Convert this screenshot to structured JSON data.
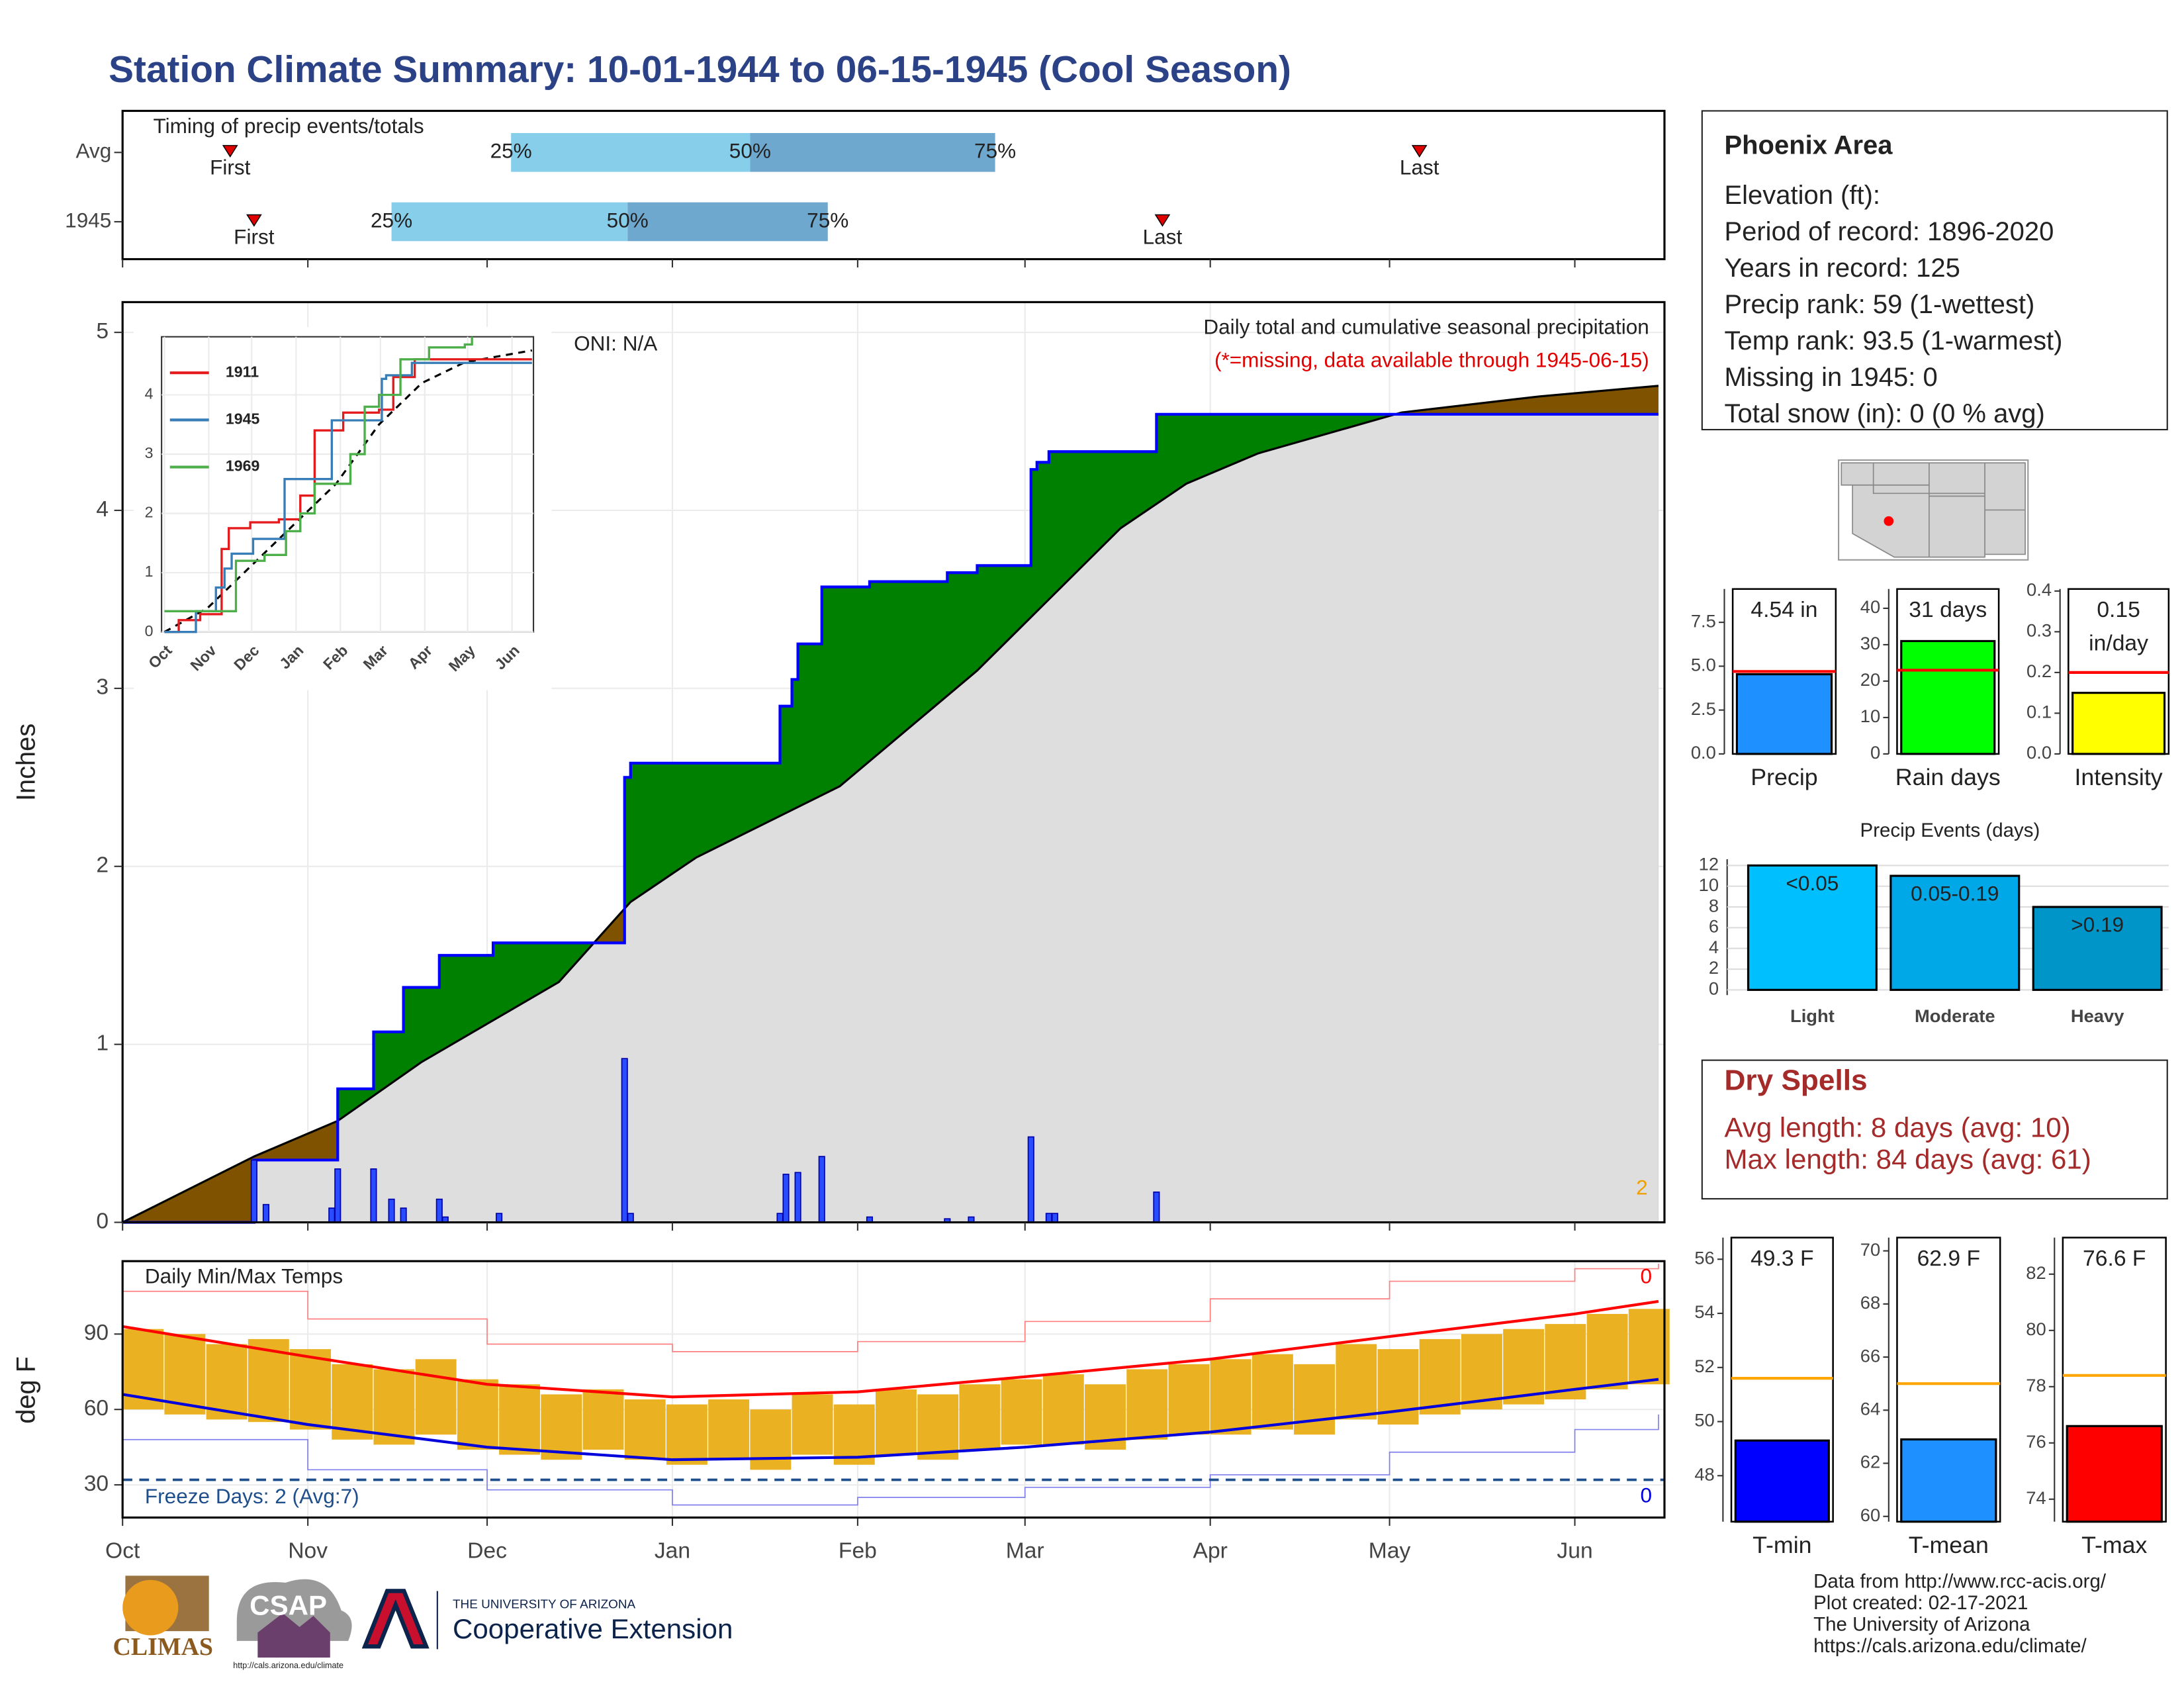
{
  "title": "Station Climate Summary: 10-01-1944 to 06-15-1945 (Cool Season)",
  "station": {
    "name": "Phoenix Area",
    "lines": [
      "Elevation (ft):",
      "Period of record: 1896-2020",
      "Years in record: 125",
      "Precip rank: 59 (1-wettest)",
      "Temp rank: 93.5 (1-warmest)",
      "Missing in 1945: 0",
      "Total snow (in): 0 (0 % avg)"
    ]
  },
  "dry_spells": {
    "title": "Dry Spells",
    "lines": [
      "Avg length: 8 days (avg: 10)",
      "Max length: 84 days (avg: 61)"
    ]
  },
  "footer": {
    "credits": [
      "Data from http://www.rcc-acis.org/",
      "Plot created: 02-17-2021",
      "The University of Arizona",
      "https://cals.arizona.edu/climate/"
    ],
    "logos": [
      "CLIMAS",
      "CSAP",
      "http://cals.arizona.edu/climate",
      "THE UNIVERSITY OF ARIZONA",
      "Cooperative Extension"
    ]
  },
  "chart_data": [
    {
      "type": "timing",
      "title": "Timing of precip events/totals",
      "categories": [
        "Avg",
        "1945"
      ],
      "xlim": [
        0,
        258
      ],
      "xticks": [
        0,
        31,
        61,
        92,
        123,
        151,
        182,
        212,
        243
      ],
      "series": [
        {
          "name": "First",
          "values": [
            18,
            22
          ]
        },
        {
          "name": "25%",
          "values": [
            65,
            45
          ]
        },
        {
          "name": "50%",
          "values": [
            105,
            84.5
          ]
        },
        {
          "name": "75%",
          "values": [
            146,
            118
          ]
        },
        {
          "name": "Last",
          "values": [
            217,
            174
          ]
        }
      ],
      "colors": [
        "#87ceeb",
        "#6fa8cf"
      ],
      "marker_color": "#e00000"
    },
    {
      "type": "cumulative",
      "title": "Daily total and cumulative seasonal precipitation",
      "subtitle": "(*=missing, data available through 1945-06-15)",
      "annotation": "ONI: N/A",
      "corner_note": 2,
      "y_label": "Inches",
      "xlim": [
        0,
        258
      ],
      "ylim": [
        0,
        5.17
      ],
      "yticks": [
        0,
        1,
        2,
        3,
        4,
        5
      ],
      "xticks": [
        0,
        31,
        61,
        92,
        123,
        151,
        182,
        212,
        243
      ],
      "grid": true,
      "cumulative": {
        "x": [
          0,
          22,
          36,
          42,
          47,
          53,
          62,
          84,
          85,
          110,
          112,
          113,
          117,
          125,
          138,
          143,
          152,
          153,
          155,
          173,
          257
        ],
        "values": [
          0,
          0.35,
          0.75,
          1.07,
          1.32,
          1.5,
          1.57,
          2.5,
          2.58,
          2.9,
          3.05,
          3.25,
          3.57,
          3.6,
          3.65,
          3.69,
          4.23,
          4.27,
          4.33,
          4.54,
          4.54
        ],
        "color": "#0000ff"
      },
      "normal": {
        "x": [
          0,
          22,
          36,
          50,
          73,
          85,
          96,
          120,
          143,
          155,
          167,
          178,
          190,
          214,
          237,
          257
        ],
        "values": [
          0,
          0.37,
          0.57,
          0.9,
          1.35,
          1.8,
          2.05,
          2.45,
          3.1,
          3.5,
          3.9,
          4.15,
          4.32,
          4.55,
          4.64,
          4.7
        ],
        "color": "#000000"
      },
      "daily": {
        "x": [
          22,
          24,
          35,
          36,
          42,
          45,
          47,
          53,
          54,
          63,
          84,
          85,
          110,
          111,
          113,
          117,
          125,
          138,
          142,
          152,
          155,
          156,
          173
        ],
        "values": [
          0.35,
          0.1,
          0.08,
          0.3,
          0.3,
          0.13,
          0.08,
          0.13,
          0.03,
          0.05,
          0.92,
          0.05,
          0.05,
          0.27,
          0.28,
          0.37,
          0.03,
          0.02,
          0.03,
          0.48,
          0.05,
          0.05,
          0.17
        ],
        "color": "#2a4cff"
      },
      "above_color": "#008000",
      "below_color": "#7f5200",
      "fill_color": "#dedede",
      "note_color": "#f0a000",
      "subtitle_color": "#e00000"
    },
    {
      "type": "temps",
      "title": "Daily Min/Max Temps",
      "y_label": "deg F",
      "xlim": [
        0,
        258
      ],
      "ylim": [
        17,
        119
      ],
      "yticks": [
        30,
        60,
        90
      ],
      "xticks": [
        {
          "value": 0,
          "label": "Oct"
        },
        {
          "value": 31,
          "label": "Nov"
        },
        {
          "value": 61,
          "label": "Dec"
        },
        {
          "value": 92,
          "label": "Jan"
        },
        {
          "value": 123,
          "label": "Feb"
        },
        {
          "value": 151,
          "label": "Mar"
        },
        {
          "value": 182,
          "label": "Apr"
        },
        {
          "value": 212,
          "label": "May"
        },
        {
          "value": 243,
          "label": "Jun"
        }
      ],
      "observed": {
        "x": [
          0,
          7,
          14,
          21,
          28,
          35,
          42,
          49,
          56,
          63,
          70,
          77,
          84,
          91,
          98,
          105,
          112,
          119,
          126,
          133,
          140,
          147,
          154,
          161,
          168,
          175,
          182,
          189,
          196,
          203,
          210,
          217,
          224,
          231,
          238,
          245,
          252
        ],
        "max": [
          92,
          90,
          86,
          88,
          84,
          78,
          76,
          80,
          72,
          70,
          66,
          68,
          64,
          62,
          64,
          60,
          66,
          62,
          68,
          66,
          70,
          72,
          74,
          70,
          76,
          78,
          80,
          82,
          78,
          86,
          84,
          88,
          90,
          92,
          94,
          98,
          100
        ],
        "min": [
          60,
          58,
          56,
          55,
          52,
          48,
          46,
          50,
          44,
          42,
          40,
          44,
          40,
          38,
          40,
          36,
          42,
          38,
          42,
          40,
          44,
          46,
          46,
          44,
          48,
          50,
          50,
          52,
          50,
          56,
          54,
          58,
          60,
          62,
          64,
          68,
          70
        ],
        "color": "#eab223"
      },
      "line_x": [
        0,
        31,
        61,
        92,
        123,
        151,
        182,
        212,
        243,
        257
      ],
      "normal_max": {
        "values": [
          93,
          81,
          70,
          65,
          67,
          73,
          80,
          89,
          98,
          103
        ],
        "color": "#ff0000"
      },
      "normal_min": {
        "values": [
          66,
          54,
          45,
          40,
          41,
          45,
          51,
          59,
          68,
          72
        ],
        "color": "#0000dd"
      },
      "record_max": {
        "values": [
          107,
          96,
          86,
          83,
          87,
          95,
          104,
          111,
          116,
          118
        ],
        "color": "#ff8080"
      },
      "record_min": {
        "values": [
          48,
          36,
          28,
          22,
          25,
          29,
          34,
          43,
          52,
          58
        ],
        "color": "#8080ee"
      },
      "freeze": 32,
      "freeze_label": "Freeze Days: 2 (Avg:7)",
      "freeze_color": "#1f4e8c",
      "record_highs": 0,
      "record_lows": 0
    },
    {
      "type": "inset",
      "xlim": [
        -2,
        258
      ],
      "ylim": [
        0,
        4.98
      ],
      "yticks": [
        0,
        1,
        2,
        3,
        4
      ],
      "xticks": [
        {
          "value": 0,
          "label": "Oct"
        },
        {
          "value": 31,
          "label": "Nov"
        },
        {
          "value": 61,
          "label": "Dec"
        },
        {
          "value": 92,
          "label": "Jan"
        },
        {
          "value": 123,
          "label": "Feb"
        },
        {
          "value": 151,
          "label": "Mar"
        },
        {
          "value": 182,
          "label": "Apr"
        },
        {
          "value": 212,
          "label": "May"
        },
        {
          "value": 243,
          "label": "Jun"
        }
      ],
      "series": [
        {
          "name": "1911",
          "color": "#e41a1c",
          "x": [
            0,
            10,
            25,
            40,
            45,
            60,
            80,
            95,
            105,
            125,
            150,
            160,
            175,
            257
          ],
          "values": [
            0,
            0.2,
            0.3,
            1.4,
            1.75,
            1.85,
            1.9,
            2.3,
            3.4,
            3.7,
            3.75,
            4.3,
            4.6,
            4.6
          ]
        },
        {
          "name": "1945",
          "color": "#377eb8",
          "x": [
            0,
            22,
            36,
            42,
            47,
            62,
            84,
            117,
            152,
            155,
            173,
            257
          ],
          "values": [
            0,
            0.35,
            0.75,
            1.07,
            1.32,
            1.57,
            2.58,
            3.57,
            4.27,
            4.33,
            4.54,
            4.54
          ]
        },
        {
          "name": "1969",
          "color": "#4daf4a",
          "x": [
            0,
            20,
            45,
            50,
            70,
            85,
            95,
            105,
            130,
            140,
            150,
            165,
            185,
            210,
            215
          ],
          "values": [
            0.35,
            0.35,
            0.35,
            1.2,
            1.3,
            1.7,
            2.0,
            2.5,
            3.0,
            3.8,
            4.0,
            4.6,
            4.8,
            4.85,
            4.98
          ]
        }
      ],
      "normal": {
        "x": [
          0,
          30,
          60,
          90,
          120,
          150,
          180,
          210,
          257
        ],
        "values": [
          0,
          0.4,
          1.1,
          1.8,
          2.5,
          3.5,
          4.2,
          4.55,
          4.75
        ],
        "color": "#000000"
      }
    },
    {
      "type": "summary_bar",
      "categories": [
        "Precip"
      ],
      "values": [
        4.54
      ],
      "value_labels": [
        "4.54 in"
      ],
      "normal": 4.7,
      "normal_color": "#ff0000",
      "color": "#1e90ff",
      "ylim": [
        0,
        9.4
      ],
      "yticks": [
        {
          "value": 0,
          "label": "0.0"
        },
        2.5,
        {
          "value": 5,
          "label": "5.0"
        },
        7.5
      ]
    },
    {
      "type": "summary_bar",
      "categories": [
        "Rain days"
      ],
      "values": [
        31
      ],
      "value_labels": [
        "31 days"
      ],
      "normal": 23,
      "normal_color": "#ff0000",
      "color": "#00ff00",
      "ylim": [
        0,
        45.3
      ],
      "yticks": [
        0,
        10,
        20,
        30,
        40
      ]
    },
    {
      "type": "summary_bar",
      "categories": [
        "Intensity"
      ],
      "values": [
        0.15
      ],
      "value_labels": [
        "0.15"
      ],
      "unit_label": "in/day",
      "normal": 0.2,
      "normal_color": "#ff0000",
      "color": "#ffff00",
      "ylim": [
        0,
        0.405
      ],
      "yticks": [
        {
          "value": 0,
          "label": "0.0"
        },
        0.1,
        0.2,
        0.3,
        0.4
      ]
    },
    {
      "type": "events",
      "title": "Precip Events (days)",
      "categories": [
        "Light",
        "Moderate",
        "Heavy"
      ],
      "values": [
        12,
        11,
        8
      ],
      "bin_labels": [
        "<0.05",
        "0.05-0.19",
        ">0.19"
      ],
      "colors": [
        "#00bfff",
        "#00a8e8",
        "#0095c8"
      ],
      "ylim": [
        -0.5,
        12.6
      ],
      "yticks": [
        0,
        2,
        4,
        6,
        8,
        10,
        12
      ],
      "grid": true
    },
    {
      "type": "summary_bar",
      "categories": [
        "T-min"
      ],
      "values": [
        49.3
      ],
      "value_labels": [
        "49.3 F"
      ],
      "normal": 51.6,
      "normal_color": "#ffa500",
      "color": "#0000ff",
      "ylim": [
        46.3,
        56.8
      ],
      "yticks": [
        48,
        50,
        52,
        54,
        56
      ]
    },
    {
      "type": "summary_bar",
      "categories": [
        "T-mean"
      ],
      "values": [
        62.9
      ],
      "value_labels": [
        "62.9 F"
      ],
      "normal": 65,
      "normal_color": "#ffa500",
      "color": "#1e90ff",
      "ylim": [
        59.8,
        70.5
      ],
      "yticks": [
        60,
        62,
        64,
        66,
        68,
        70
      ]
    },
    {
      "type": "summary_bar",
      "categories": [
        "T-max"
      ],
      "values": [
        76.6
      ],
      "value_labels": [
        "76.6 F"
      ],
      "normal": 78.4,
      "normal_color": "#ffa500",
      "color": "#ff0000",
      "ylim": [
        73.2,
        83.3
      ],
      "yticks": [
        74,
        76,
        78,
        80,
        82
      ]
    }
  ]
}
